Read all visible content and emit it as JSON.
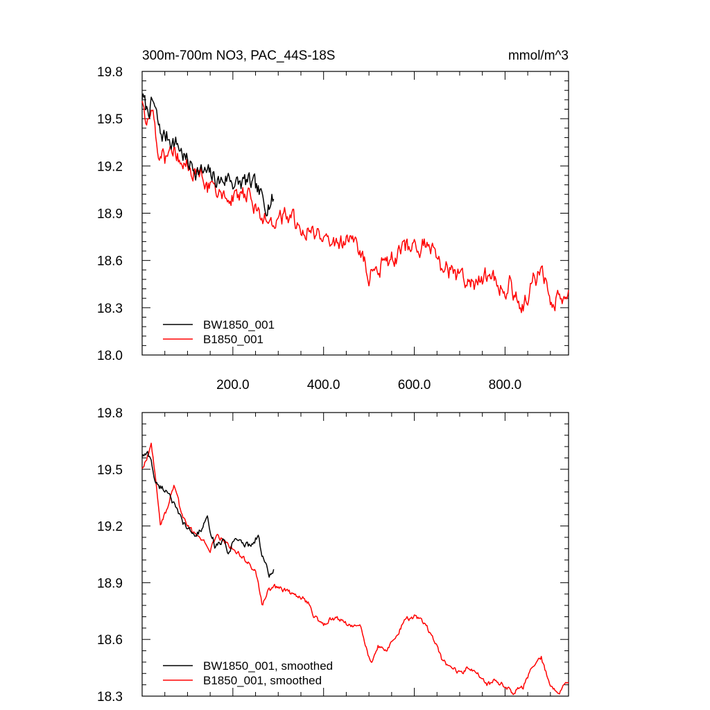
{
  "chart_data": [
    {
      "type": "line",
      "title": "300m-700m NO3, PAC_44S-18S",
      "units": "mmol/m^3",
      "xlim": [
        0,
        940
      ],
      "ylim": [
        18.0,
        19.8
      ],
      "xticks": [
        200,
        400,
        600,
        800
      ],
      "xtick_labels": [
        "200.0",
        "400.0",
        "600.0",
        "800.0"
      ],
      "yticks": [
        18.0,
        18.3,
        18.6,
        18.9,
        19.2,
        19.5,
        19.8
      ],
      "ytick_labels": [
        "18.0",
        "18.3",
        "18.6",
        "18.9",
        "19.2",
        "19.5",
        "19.8"
      ],
      "grid": false,
      "legend_position": "bottom-left",
      "series": [
        {
          "name": "BW1850_001",
          "color": "#000000",
          "x_range": [
            0,
            290
          ],
          "anchors": [
            [
              0,
              19.65
            ],
            [
              10,
              19.55
            ],
            [
              25,
              19.6
            ],
            [
              40,
              19.4
            ],
            [
              60,
              19.38
            ],
            [
              80,
              19.33
            ],
            [
              100,
              19.22
            ],
            [
              130,
              19.16
            ],
            [
              150,
              19.14
            ],
            [
              170,
              19.1
            ],
            [
              190,
              19.13
            ],
            [
              210,
              19.08
            ],
            [
              230,
              19.1
            ],
            [
              250,
              19.06
            ],
            [
              270,
              18.96
            ],
            [
              290,
              18.99
            ]
          ],
          "noise": 0.05
        },
        {
          "name": "B1850_001",
          "color": "#ff0000",
          "x_range": [
            0,
            940
          ],
          "anchors": [
            [
              0,
              19.6
            ],
            [
              10,
              19.5
            ],
            [
              20,
              19.62
            ],
            [
              35,
              19.3
            ],
            [
              50,
              19.25
            ],
            [
              70,
              19.35
            ],
            [
              90,
              19.22
            ],
            [
              120,
              19.15
            ],
            [
              150,
              19.05
            ],
            [
              180,
              19.02
            ],
            [
              210,
              19.02
            ],
            [
              240,
              19.0
            ],
            [
              260,
              18.85
            ],
            [
              280,
              18.87
            ],
            [
              300,
              18.86
            ],
            [
              330,
              18.88
            ],
            [
              360,
              18.8
            ],
            [
              400,
              18.75
            ],
            [
              430,
              18.7
            ],
            [
              460,
              18.72
            ],
            [
              480,
              18.68
            ],
            [
              500,
              18.5
            ],
            [
              530,
              18.57
            ],
            [
              560,
              18.62
            ],
            [
              600,
              18.72
            ],
            [
              630,
              18.68
            ],
            [
              660,
              18.57
            ],
            [
              700,
              18.5
            ],
            [
              730,
              18.45
            ],
            [
              760,
              18.5
            ],
            [
              790,
              18.42
            ],
            [
              810,
              18.45
            ],
            [
              840,
              18.3
            ],
            [
              860,
              18.48
            ],
            [
              880,
              18.52
            ],
            [
              900,
              18.35
            ],
            [
              920,
              18.35
            ],
            [
              940,
              18.35
            ]
          ],
          "noise": 0.05
        }
      ]
    },
    {
      "type": "line",
      "title": "",
      "xlim": [
        0,
        940
      ],
      "ylim": [
        18.3,
        19.8
      ],
      "xticks": [
        200,
        400,
        600,
        800
      ],
      "xtick_labels": [],
      "yticks": [
        18.3,
        18.6,
        18.9,
        19.2,
        19.5,
        19.8
      ],
      "ytick_labels": [
        "18.3",
        "18.6",
        "18.9",
        "19.2",
        "19.5",
        "19.8"
      ],
      "grid": false,
      "legend_position": "bottom-left",
      "series": [
        {
          "name": "BW1850_001, smoothed",
          "color": "#000000",
          "x_range": [
            0,
            290
          ],
          "anchors": [
            [
              0,
              19.57
            ],
            [
              12,
              19.58
            ],
            [
              20,
              19.55
            ],
            [
              30,
              19.42
            ],
            [
              45,
              19.4
            ],
            [
              60,
              19.38
            ],
            [
              75,
              19.28
            ],
            [
              90,
              19.22
            ],
            [
              100,
              19.18
            ],
            [
              120,
              19.15
            ],
            [
              135,
              19.2
            ],
            [
              145,
              19.23
            ],
            [
              160,
              19.1
            ],
            [
              180,
              19.12
            ],
            [
              190,
              19.05
            ],
            [
              205,
              19.15
            ],
            [
              220,
              19.1
            ],
            [
              240,
              19.1
            ],
            [
              255,
              19.15
            ],
            [
              265,
              19.05
            ],
            [
              280,
              18.93
            ],
            [
              290,
              18.96
            ]
          ],
          "noise": 0.015
        },
        {
          "name": "B1850_001, smoothed",
          "color": "#ff0000",
          "x_range": [
            0,
            940
          ],
          "anchors": [
            [
              0,
              19.5
            ],
            [
              10,
              19.55
            ],
            [
              20,
              19.63
            ],
            [
              30,
              19.45
            ],
            [
              40,
              19.22
            ],
            [
              55,
              19.28
            ],
            [
              70,
              19.42
            ],
            [
              85,
              19.28
            ],
            [
              100,
              19.2
            ],
            [
              120,
              19.14
            ],
            [
              140,
              19.12
            ],
            [
              150,
              19.08
            ],
            [
              165,
              19.15
            ],
            [
              180,
              19.12
            ],
            [
              200,
              19.08
            ],
            [
              230,
              19.02
            ],
            [
              250,
              18.95
            ],
            [
              265,
              18.78
            ],
            [
              275,
              18.85
            ],
            [
              290,
              18.88
            ],
            [
              320,
              18.85
            ],
            [
              350,
              18.83
            ],
            [
              370,
              18.78
            ],
            [
              380,
              18.72
            ],
            [
              400,
              18.68
            ],
            [
              420,
              18.72
            ],
            [
              440,
              18.7
            ],
            [
              460,
              18.66
            ],
            [
              480,
              18.68
            ],
            [
              490,
              18.58
            ],
            [
              505,
              18.48
            ],
            [
              520,
              18.56
            ],
            [
              540,
              18.55
            ],
            [
              560,
              18.62
            ],
            [
              580,
              18.7
            ],
            [
              600,
              18.72
            ],
            [
              620,
              18.68
            ],
            [
              640,
              18.62
            ],
            [
              660,
              18.5
            ],
            [
              680,
              18.45
            ],
            [
              700,
              18.42
            ],
            [
              720,
              18.45
            ],
            [
              740,
              18.42
            ],
            [
              760,
              18.36
            ],
            [
              780,
              18.38
            ],
            [
              800,
              18.35
            ],
            [
              820,
              18.32
            ],
            [
              840,
              18.35
            ],
            [
              860,
              18.45
            ],
            [
              880,
              18.5
            ],
            [
              900,
              18.35
            ],
            [
              920,
              18.32
            ],
            [
              940,
              18.38
            ]
          ],
          "noise": 0.012
        }
      ]
    }
  ]
}
